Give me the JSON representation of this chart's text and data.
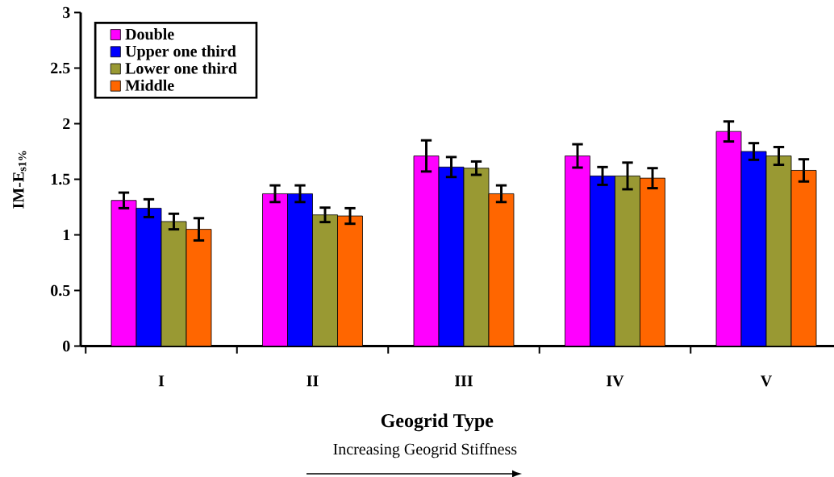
{
  "chart_data": {
    "type": "bar",
    "xlabel": "Geogrid Type",
    "ylabel": "IM-E$_{s1%}$",
    "categories": [
      "I",
      "II",
      "III",
      "IV",
      "V"
    ],
    "series": [
      {
        "name": "Double",
        "color": "#ff00ff",
        "values": [
          1.31,
          1.37,
          1.71,
          1.71,
          1.93
        ],
        "errors": [
          0.07,
          0.075,
          0.14,
          0.105,
          0.09
        ]
      },
      {
        "name": "Upper one third",
        "color": "#0000ff",
        "values": [
          1.24,
          1.37,
          1.61,
          1.53,
          1.75
        ],
        "errors": [
          0.08,
          0.075,
          0.09,
          0.08,
          0.075
        ]
      },
      {
        "name": "Lower one third",
        "color": "#999933",
        "values": [
          1.12,
          1.18,
          1.6,
          1.53,
          1.71
        ],
        "errors": [
          0.07,
          0.065,
          0.06,
          0.12,
          0.08
        ]
      },
      {
        "name": "Middle",
        "color": "#ff6600",
        "values": [
          1.05,
          1.17,
          1.37,
          1.51,
          1.58
        ],
        "errors": [
          0.1,
          0.07,
          0.075,
          0.09,
          0.1
        ]
      }
    ],
    "ylim": [
      0,
      3
    ],
    "yticks": [
      0,
      0.5,
      1,
      1.5,
      2,
      2.5,
      3
    ],
    "legend": "top left",
    "annotations": [
      "Increasing Geogrid Stiffness"
    ]
  }
}
